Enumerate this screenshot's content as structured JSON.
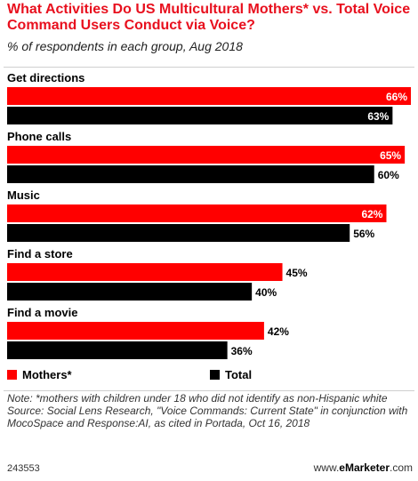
{
  "header": {
    "title": "What Activities Do US Multicultural Mothers* vs. Total Voice Command Users Conduct via Voice?",
    "subtitle": "% of respondents in each group, Aug 2018"
  },
  "chart_data": {
    "type": "bar",
    "orientation": "horizontal",
    "title": "What Activities Do US Multicultural Mothers* vs. Total Voice Command Users Conduct via Voice?",
    "subtitle": "% of respondents in each group, Aug 2018",
    "categories": [
      "Get directions",
      "Phone calls",
      "Music",
      "Find a store",
      "Find a movie"
    ],
    "series": [
      {
        "name": "Mothers*",
        "color": "#ff0000",
        "values": [
          66,
          65,
          62,
          45,
          42
        ]
      },
      {
        "name": "Total",
        "color": "#000000",
        "values": [
          63,
          60,
          56,
          40,
          36
        ]
      }
    ],
    "value_suffix": "%",
    "xlim": [
      0,
      66
    ],
    "grid": false,
    "legend_position": "bottom-left"
  },
  "footer": {
    "note": "Note: *mothers with children under 18 who did not identify as non-Hispanic white",
    "source": "Source: Social Lens Research, \"Voice Commands: Current State\" in conjunction with MocoSpace and Response:AI, as cited in Portada, Oct 16, 2018",
    "chart_id": "243553",
    "brand_prefix": "www.",
    "brand_name": "eMarketer",
    "brand_suffix": ".com"
  }
}
